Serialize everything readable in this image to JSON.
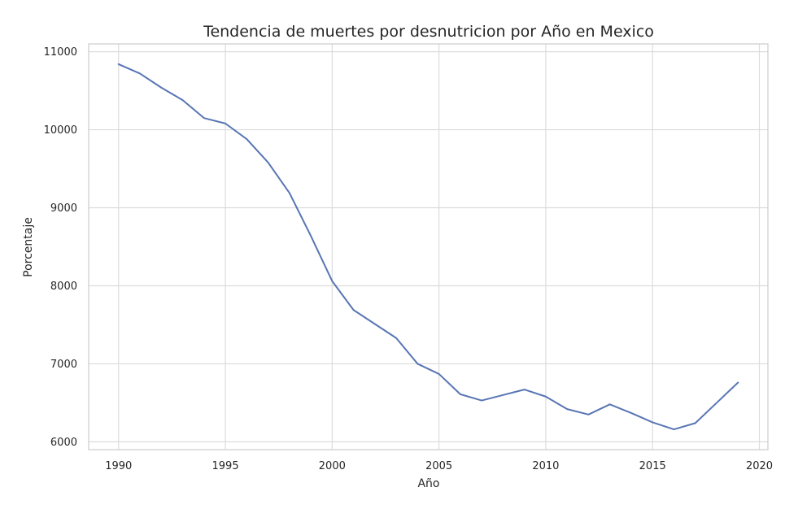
{
  "chart_data": {
    "type": "line",
    "title": "Tendencia de muertes por desnutricion por Año en Mexico",
    "xlabel": "Año",
    "ylabel": "Porcentaje",
    "xlim": [
      1988.6,
      2020.4
    ],
    "ylim": [
      5900,
      11100
    ],
    "x_ticks": [
      1990,
      1995,
      2000,
      2005,
      2010,
      2015,
      2020
    ],
    "y_ticks": [
      6000,
      7000,
      8000,
      9000,
      10000,
      11000
    ],
    "grid": true,
    "series_color": "#5875b4",
    "series": [
      {
        "x": [
          1990,
          1991,
          1992,
          1993,
          1994,
          1995,
          1996,
          1997,
          1998,
          1999,
          2000,
          2001,
          2002,
          2003,
          2004,
          2005,
          2006,
          2007,
          2008,
          2009,
          2010,
          2011,
          2012,
          2013,
          2014,
          2015,
          2016,
          2017,
          2018,
          2019
        ],
        "values": [
          10840,
          10720,
          10540,
          10380,
          10150,
          10080,
          9880,
          9580,
          9190,
          8640,
          8060,
          7690,
          7510,
          7330,
          7000,
          6870,
          6610,
          6530,
          6600,
          6670,
          6580,
          6420,
          6350,
          6480,
          6370,
          6250,
          6160,
          6240,
          6500,
          6760
        ]
      }
    ]
  }
}
